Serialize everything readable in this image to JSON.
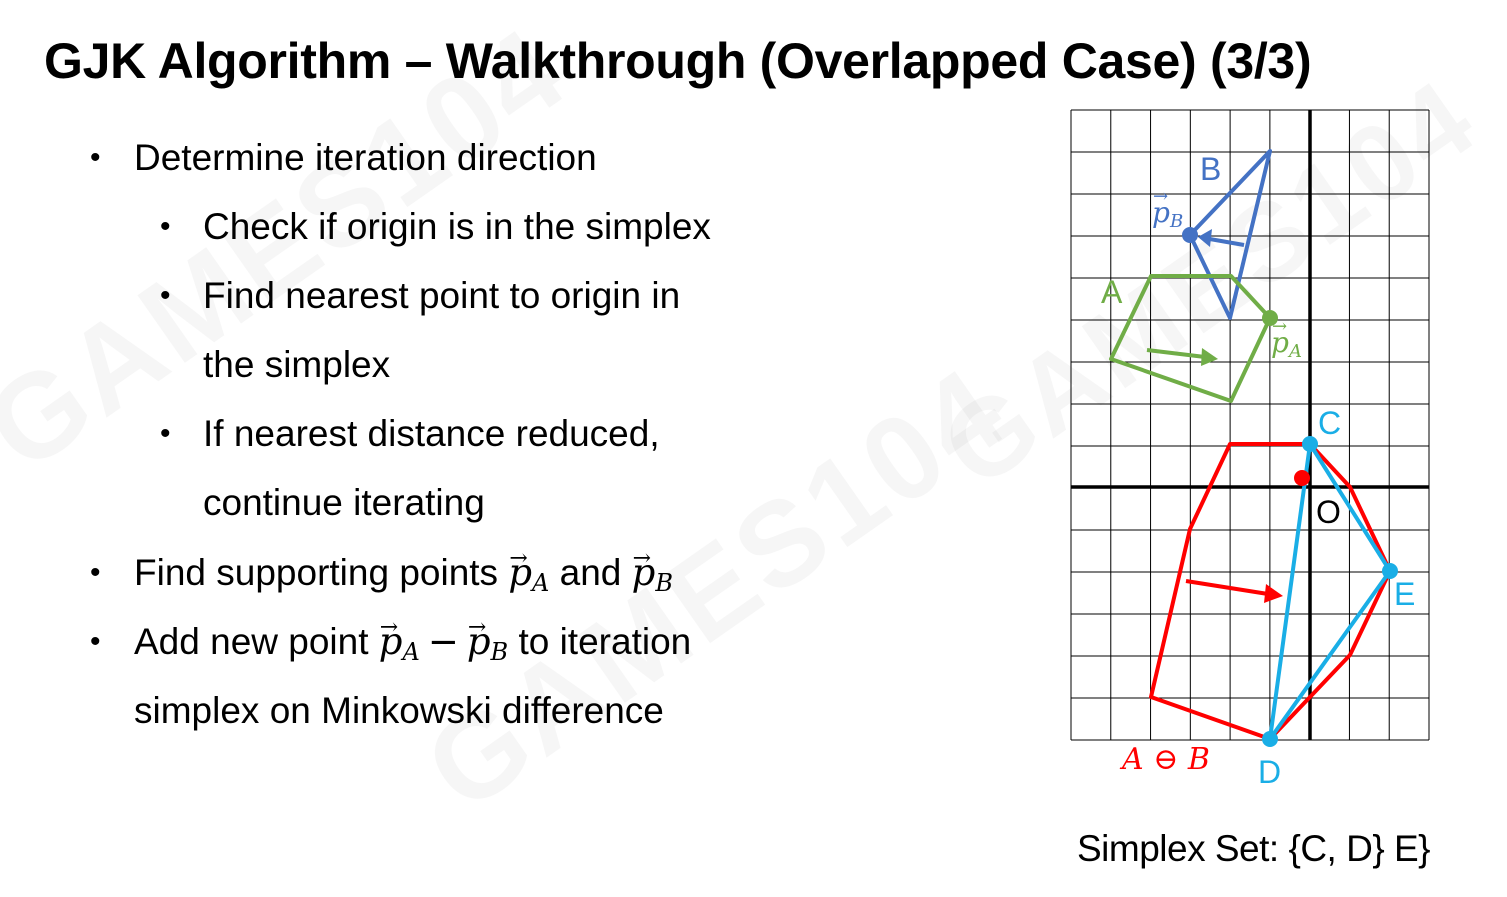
{
  "slide": {
    "title": "GJK Algorithm – Walkthrough (Overlapped Case) (3/3)",
    "simplex_set": "Simplex Set: {C, D} E}"
  },
  "bullets": [
    {
      "level": 1,
      "text": "Determine iteration direction"
    },
    {
      "level": 2,
      "text": "Check if origin is in the simplex"
    },
    {
      "level": 2,
      "text": "Find nearest point to origin in"
    },
    {
      "level": 2,
      "text": "the simplex",
      "continuation": true
    },
    {
      "level": 2,
      "text": "If nearest distance reduced,"
    },
    {
      "level": 2,
      "text": "continue iterating",
      "continuation": true
    },
    {
      "level": 1,
      "text_parts": [
        "Find supporting points ",
        "p_A",
        " and ",
        "p_B"
      ]
    },
    {
      "level": 1,
      "text_parts": [
        "Add new point ",
        "p_A − p_B",
        " to iteration"
      ]
    },
    {
      "level": 1,
      "text": "simplex on Minkowski difference",
      "continuation": true
    }
  ],
  "math": {
    "p": "p",
    "sub_A": "A",
    "sub_B": "B",
    "minus": "−",
    "and": " and ",
    "find_prefix": "Find supporting points ",
    "add_prefix": "Add new point ",
    "add_suffix": " to iteration"
  },
  "diagram": {
    "labels": {
      "B": "B",
      "A": "A",
      "C": "C",
      "O": "O",
      "E": "E",
      "D": "D",
      "pA": "p",
      "pB": "p",
      "minkowski": "A ⊖ B"
    },
    "colors": {
      "shape_A": "#70AD47",
      "shape_B": "#4472C4",
      "minkowski": "#FF0000",
      "simplex": "#1AAEE6",
      "nearest_point": "#FF0000",
      "grid": "#000000"
    },
    "grid": {
      "cols": 9,
      "rows": 15,
      "origin_col": 6,
      "origin_row": 9
    }
  }
}
